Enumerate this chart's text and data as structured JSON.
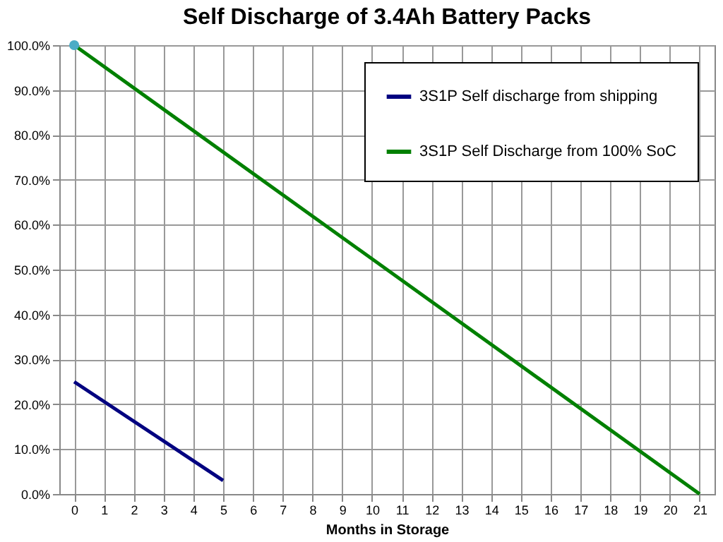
{
  "chart_data": {
    "type": "line",
    "title": "Self Discharge of 3.4Ah Battery Packs",
    "xlabel": "Months in Storage",
    "series": [
      {
        "name": "3S1P Self discharge from shipping",
        "color": "#000080",
        "x": [
          0,
          5
        ],
        "values": [
          25,
          3
        ]
      },
      {
        "name": "3S1P Self Discharge from 100% SoC",
        "color": "#008000",
        "x": [
          0,
          21
        ],
        "values": [
          100,
          0
        ]
      },
      {
        "type": "scatter",
        "color": "#4bacc6",
        "x": [
          0
        ],
        "values": [
          100
        ]
      }
    ],
    "xlim": [
      -0.5,
      21.5
    ],
    "xticks": [
      0,
      1,
      2,
      3,
      4,
      5,
      6,
      7,
      8,
      9,
      10,
      11,
      12,
      13,
      14,
      15,
      16,
      17,
      18,
      19,
      20,
      21
    ],
    "ylim": [
      0,
      100
    ],
    "yticks": [
      {
        "value": 0,
        "label": "0.0%"
      },
      {
        "value": 10,
        "label": "10.0%"
      },
      {
        "value": 20,
        "label": "20.0%"
      },
      {
        "value": 30,
        "label": "30.0%"
      },
      {
        "value": 40,
        "label": "40.0%"
      },
      {
        "value": 50,
        "label": "50.0%"
      },
      {
        "value": 60,
        "label": "60.0%"
      },
      {
        "value": 70,
        "label": "70.0%"
      },
      {
        "value": 80,
        "label": "80.0%"
      },
      {
        "value": 90,
        "label": "90.0%"
      },
      {
        "value": 100,
        "label": "100.0%"
      }
    ],
    "grid": true,
    "legend": "top right",
    "line_style": "solid"
  }
}
